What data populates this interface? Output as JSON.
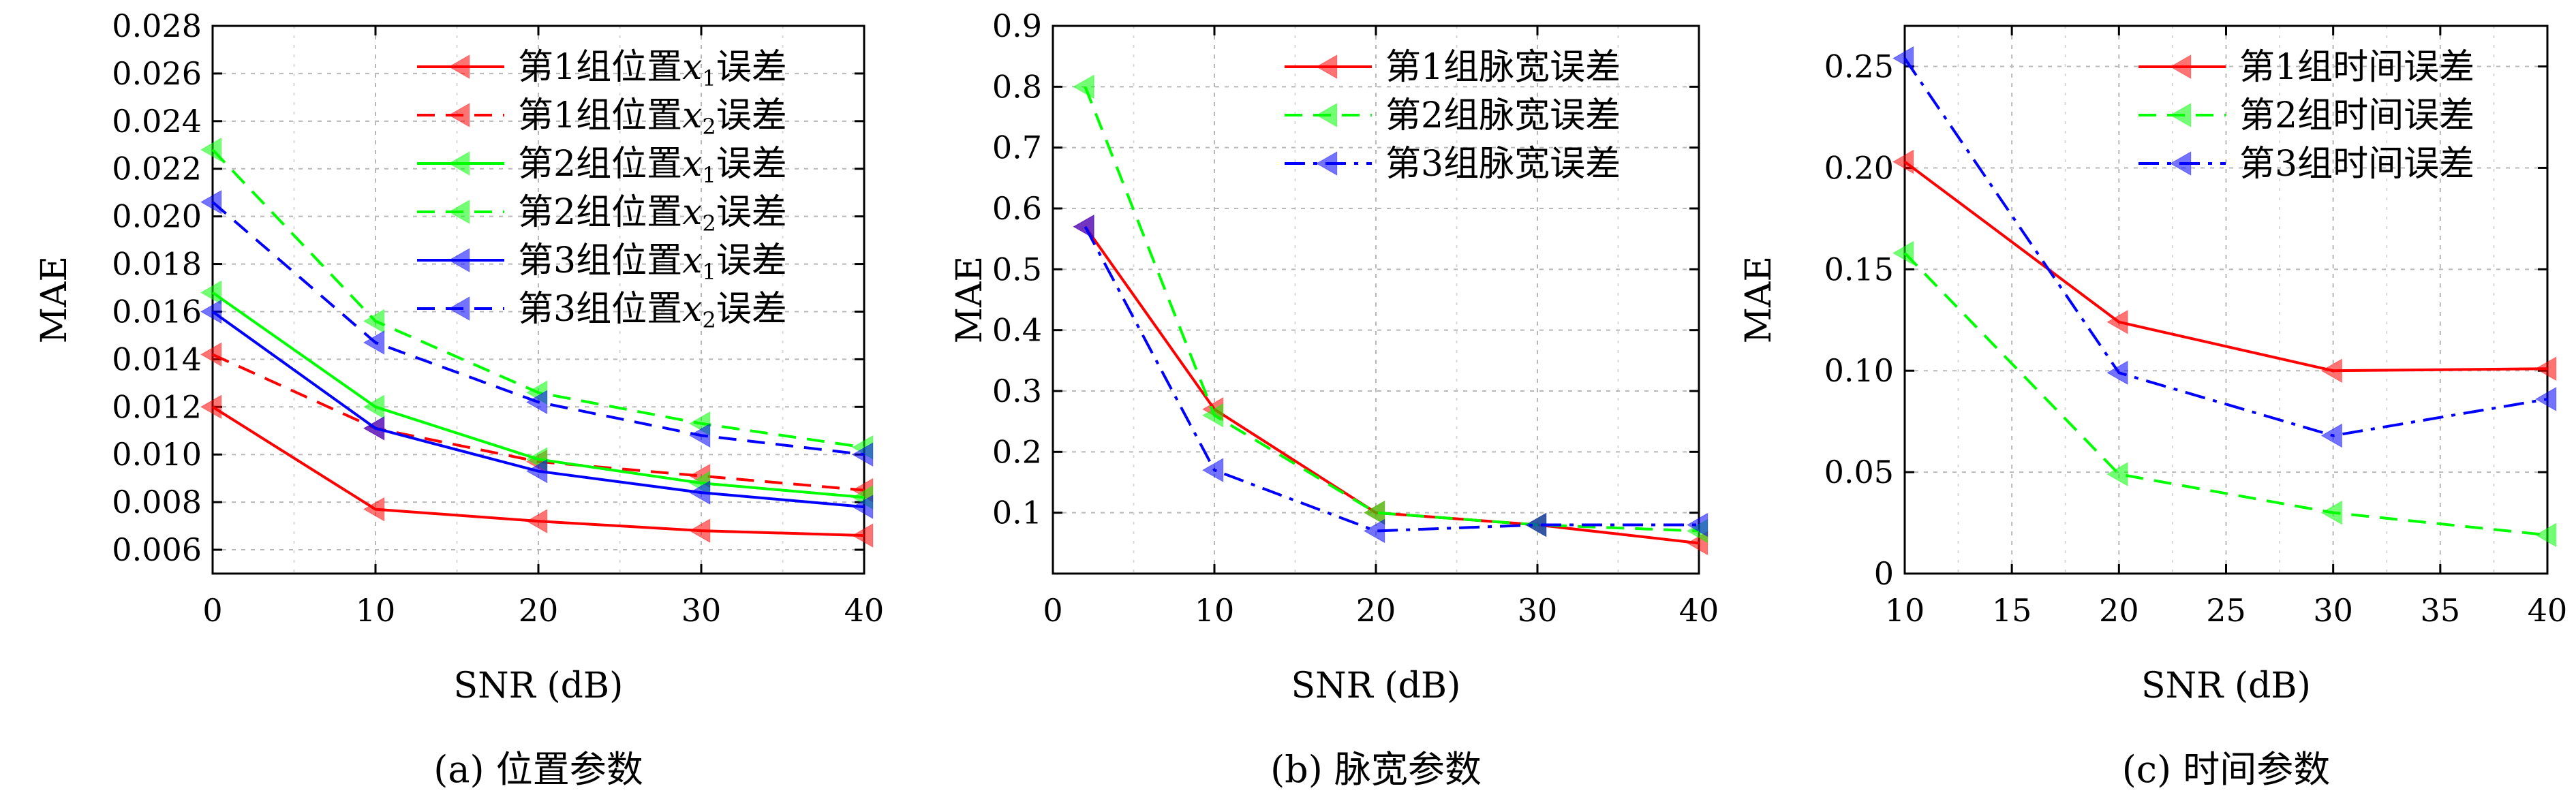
{
  "chart_data": [
    {
      "type": "line",
      "caption": "(a) 位置参数",
      "xlabel": "SNR (dB)",
      "ylabel": "MAE",
      "xlim": [
        0,
        40
      ],
      "ylim": [
        0.005,
        0.028
      ],
      "xticks": [
        0,
        10,
        20,
        30,
        40
      ],
      "xtick_labels": [
        "0",
        "10",
        "20",
        "30",
        "40"
      ],
      "yticks": [
        0.006,
        0.008,
        0.01,
        0.012,
        0.014,
        0.016,
        0.018,
        0.02,
        0.022,
        0.024,
        0.026,
        0.028
      ],
      "ytick_labels": [
        "0.006",
        "0.008",
        "0.010",
        "0.012",
        "0.014",
        "0.016",
        "0.018",
        "0.020",
        "0.022",
        "0.024",
        "0.026",
        "0.028"
      ],
      "grid": true,
      "legend_position": "top-right",
      "x": [
        0,
        10,
        20,
        30,
        40
      ],
      "series": [
        {
          "name": "第1组位置x1误差",
          "name_parts": [
            "第1组位置",
            "x",
            "1",
            "误差"
          ],
          "values": [
            0.012,
            0.0077,
            0.0072,
            0.0068,
            0.0066
          ],
          "color": "#ff0000",
          "dash": "solid"
        },
        {
          "name": "第1组位置x2误差",
          "name_parts": [
            "第1组位置",
            "x",
            "2",
            "误差"
          ],
          "values": [
            0.0142,
            0.0111,
            0.0097,
            0.0091,
            0.0085
          ],
          "color": "#ff0000",
          "dash": "dashed"
        },
        {
          "name": "第2组位置x1误差",
          "name_parts": [
            "第2组位置",
            "x",
            "1",
            "误差"
          ],
          "values": [
            0.0168,
            0.012,
            0.0098,
            0.0088,
            0.0082
          ],
          "color": "#00ff00",
          "dash": "solid"
        },
        {
          "name": "第2组位置x2误差",
          "name_parts": [
            "第2组位置",
            "x",
            "2",
            "误差"
          ],
          "values": [
            0.0228,
            0.0156,
            0.0126,
            0.0113,
            0.0103
          ],
          "color": "#00ff00",
          "dash": "dashed"
        },
        {
          "name": "第3组位置x1误差",
          "name_parts": [
            "第3组位置",
            "x",
            "1",
            "误差"
          ],
          "values": [
            0.016,
            0.0111,
            0.0093,
            0.0084,
            0.0078
          ],
          "color": "#0000ff",
          "dash": "solid"
        },
        {
          "name": "第3组位置x2误差",
          "name_parts": [
            "第3组位置",
            "x",
            "2",
            "误差"
          ],
          "values": [
            0.0206,
            0.0147,
            0.0122,
            0.0108,
            0.01
          ],
          "color": "#0000ff",
          "dash": "dashed"
        }
      ]
    },
    {
      "type": "line",
      "caption": "(b) 脉宽参数",
      "xlabel": "SNR (dB)",
      "ylabel": "MAE",
      "xlim": [
        0,
        40
      ],
      "ylim": [
        0.0,
        0.9
      ],
      "xticks": [
        0,
        10,
        20,
        30,
        40
      ],
      "xtick_labels": [
        "0",
        "10",
        "20",
        "30",
        "40"
      ],
      "yticks": [
        0.1,
        0.2,
        0.3,
        0.4,
        0.5,
        0.6,
        0.7,
        0.8,
        0.9
      ],
      "ytick_labels": [
        "0.1",
        "0.2",
        "0.3",
        "0.4",
        "0.5",
        "0.6",
        "0.7",
        "0.8",
        "0.9"
      ],
      "grid": true,
      "legend_position": "top-right",
      "x": [
        2,
        10,
        20,
        30,
        40
      ],
      "series": [
        {
          "name": "第1组脉宽误差",
          "name_parts": [
            "第1组脉宽误差"
          ],
          "values": [
            0.57,
            0.27,
            0.1,
            0.08,
            0.05
          ],
          "color": "#ff0000",
          "dash": "solid"
        },
        {
          "name": "第2组脉宽误差",
          "name_parts": [
            "第2组脉宽误差"
          ],
          "values": [
            0.8,
            0.26,
            0.1,
            0.08,
            0.07
          ],
          "color": "#00ff00",
          "dash": "dashed"
        },
        {
          "name": "第3组脉宽误差",
          "name_parts": [
            "第3组脉宽误差"
          ],
          "values": [
            0.57,
            0.17,
            0.07,
            0.08,
            0.08
          ],
          "color": "#0000ff",
          "dash": "dashdot"
        }
      ]
    },
    {
      "type": "line",
      "caption": "(c) 时间参数",
      "xlabel": "SNR (dB)",
      "ylabel": "MAE",
      "xlim": [
        10,
        40
      ],
      "ylim": [
        0.0,
        0.27
      ],
      "xticks": [
        10,
        15,
        20,
        25,
        30,
        35,
        40
      ],
      "xtick_labels": [
        "10",
        "15",
        "20",
        "25",
        "30",
        "35",
        "40"
      ],
      "yticks": [
        0.0,
        0.05,
        0.1,
        0.15,
        0.2,
        0.25
      ],
      "ytick_labels": [
        "0",
        "0.05",
        "0.10",
        "0.15",
        "0.20",
        "0.25"
      ],
      "grid": true,
      "legend_position": "top-right",
      "x": [
        10,
        20,
        30,
        40
      ],
      "series": [
        {
          "name": "第1组时间误差",
          "name_parts": [
            "第1组时间误差"
          ],
          "values": [
            0.203,
            0.124,
            0.1,
            0.101
          ],
          "color": "#ff0000",
          "dash": "solid"
        },
        {
          "name": "第2组时间误差",
          "name_parts": [
            "第2组时间误差"
          ],
          "values": [
            0.158,
            0.049,
            0.03,
            0.019
          ],
          "color": "#00ff00",
          "dash": "dashed"
        },
        {
          "name": "第3组时间误差",
          "name_parts": [
            "第3组时间误差"
          ],
          "values": [
            0.254,
            0.099,
            0.068,
            0.086
          ],
          "color": "#0000ff",
          "dash": "dashdot"
        }
      ]
    }
  ]
}
